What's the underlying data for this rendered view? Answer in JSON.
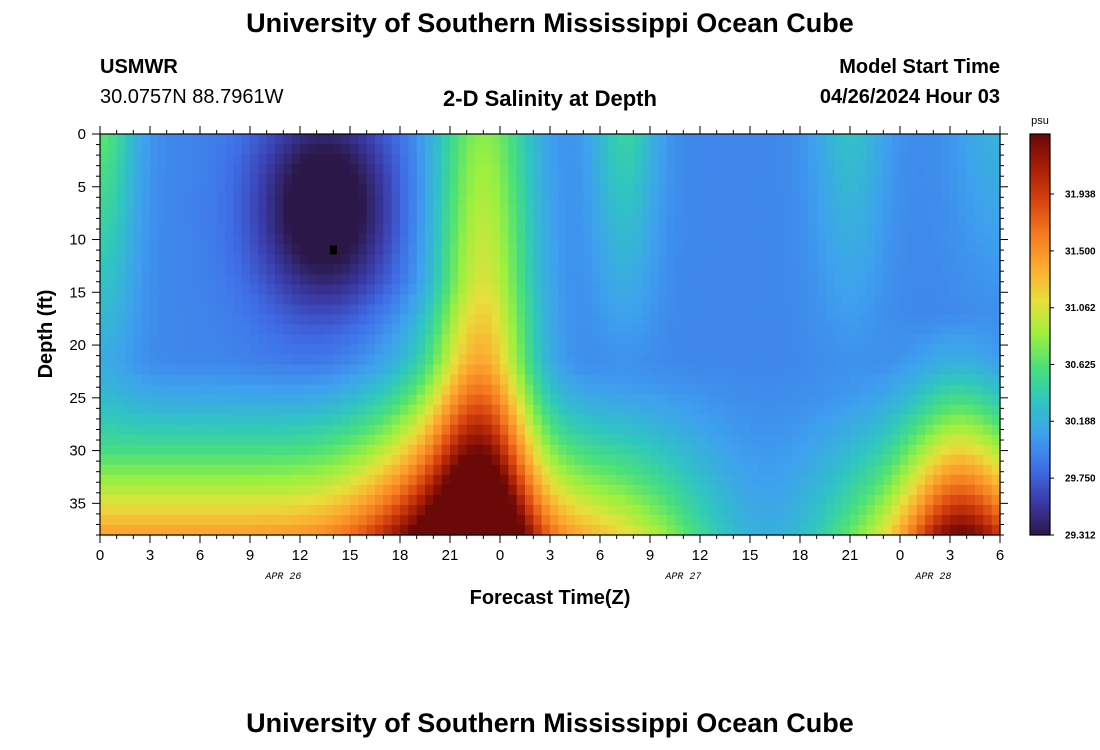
{
  "header": {
    "title_top": "University of Southern Mississippi Ocean Cube",
    "station": "USMWR",
    "coords": "30.0757N  88.7961W",
    "plot_title": "2-D Salinity at Depth",
    "start_label": "Model Start Time",
    "start_value": "04/26/2024 Hour 03",
    "title_bottom": "University of Southern Mississippi Ocean Cube"
  },
  "chart_data": {
    "type": "heatmap",
    "title": "2-D Salinity at Depth",
    "xlabel": "Forecast Time(Z)",
    "ylabel": "Depth (ft)",
    "x_hours_range": [
      0,
      54
    ],
    "x_tick_hours": [
      0,
      3,
      6,
      9,
      12,
      15,
      18,
      21,
      24,
      27,
      30,
      33,
      36,
      39,
      42,
      45,
      48,
      51,
      54
    ],
    "x_tick_labels": [
      "0",
      "3",
      "6",
      "9",
      "12",
      "15",
      "18",
      "21",
      "0",
      "3",
      "6",
      "9",
      "12",
      "15",
      "18",
      "21",
      "0",
      "3",
      "6"
    ],
    "date_labels": [
      {
        "hour": 11,
        "text": "APR 26"
      },
      {
        "hour": 35,
        "text": "APR 27"
      },
      {
        "hour": 50,
        "text": "APR 28"
      }
    ],
    "y_range_ft": [
      0,
      38
    ],
    "y_tick_values": [
      0,
      5,
      10,
      15,
      20,
      25,
      30,
      35
    ],
    "y_tick_labels": [
      "0",
      "5",
      "10",
      "15",
      "20",
      "25",
      "30",
      "35"
    ],
    "colorbar": {
      "unit": "psu",
      "range": [
        29.312,
        32.4
      ],
      "tick_values": [
        29.312,
        29.75,
        30.188,
        30.625,
        31.062,
        31.5,
        31.938
      ],
      "tick_labels": [
        "29.312",
        "29.750",
        "30.188",
        "30.625",
        "31.062",
        "31.500",
        "31.938"
      ],
      "colors": [
        "#2b1848",
        "#3b3aa8",
        "#3f6fe8",
        "#3ea1ee",
        "#2fc6c0",
        "#4ae07a",
        "#9cf03f",
        "#e8e03a",
        "#fdab31",
        "#f47a1f",
        "#d8430f",
        "#a51d06",
        "#6b0808"
      ]
    },
    "marker": {
      "hour": 14,
      "depth_ft": 11
    }
  }
}
